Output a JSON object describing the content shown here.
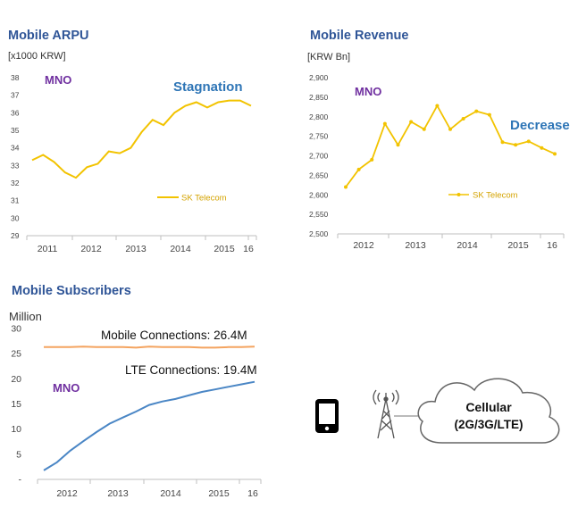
{
  "colors": {
    "title": "#2f5597",
    "sk_line": "#f2c300",
    "sk_legend": "#d4a300",
    "mno": "#7030a0",
    "note": "#2e75b6",
    "mobile_conn": "#f4a460",
    "lte_conn": "#4a86c5"
  },
  "chart_data": [
    {
      "type": "line",
      "title": "Mobile ARPU",
      "ylabel": "[x1000 KRW]",
      "ylim": [
        29,
        38
      ],
      "yticks": [
        29,
        30,
        31,
        32,
        33,
        34,
        35,
        36,
        37,
        38
      ],
      "xlabels": [
        "2011",
        "2012",
        "2013",
        "2014",
        "2015",
        "16"
      ],
      "annotations": {
        "mno": "MNO",
        "note": "Stagnation"
      },
      "series": [
        {
          "name": "SK Telecom",
          "x": [
            "2011 Q1",
            "2011 Q2",
            "2011 Q3",
            "2011 Q4",
            "2012 Q1",
            "2012 Q2",
            "2012 Q3",
            "2012 Q4",
            "2013 Q1",
            "2013 Q2",
            "2013 Q3",
            "2013 Q4",
            "2014 Q1",
            "2014 Q2",
            "2014 Q3",
            "2014 Q4",
            "2015 Q1",
            "2015 Q2",
            "2015 Q3",
            "2015 Q4",
            "2016 Q1"
          ],
          "values": [
            33.3,
            33.6,
            33.2,
            32.6,
            32.3,
            32.9,
            33.1,
            33.8,
            33.7,
            34.0,
            34.9,
            35.6,
            35.3,
            36.0,
            36.4,
            36.6,
            36.3,
            36.6,
            36.7,
            36.7,
            36.4
          ]
        }
      ],
      "legend": "SK Telecom"
    },
    {
      "type": "line",
      "title": "Mobile Revenue",
      "ylabel": "[KRW Bn]",
      "ylim": [
        2500,
        2900
      ],
      "yticks": [
        "2,500",
        "2,550",
        "2,600",
        "2,650",
        "2,700",
        "2,750",
        "2,800",
        "2,850",
        "2,900"
      ],
      "xlabels": [
        "2012",
        "2013",
        "2014",
        "2015",
        "16"
      ],
      "annotations": {
        "mno": "MNO",
        "note": "Decrease"
      },
      "series": [
        {
          "name": "SK Telecom",
          "x": [
            "2012 Q1",
            "2012 Q2",
            "2012 Q3",
            "2012 Q4",
            "2013 Q1",
            "2013 Q2",
            "2013 Q3",
            "2013 Q4",
            "2014 Q1",
            "2014 Q2",
            "2014 Q3",
            "2014 Q4",
            "2015 Q1",
            "2015 Q2",
            "2015 Q3",
            "2015 Q4",
            "2016 Q1"
          ],
          "values": [
            2620,
            2665,
            2690,
            2782,
            2728,
            2787,
            2768,
            2828,
            2768,
            2795,
            2814,
            2805,
            2735,
            2728,
            2737,
            2720,
            2705
          ]
        }
      ],
      "legend": "SK Telecom"
    },
    {
      "type": "line",
      "title": "Mobile Subscribers",
      "ylabel": "Million",
      "ylim": [
        0,
        30
      ],
      "yticks": [
        "-",
        "5",
        "10",
        "15",
        "20",
        "25",
        "30"
      ],
      "xlabels": [
        "2012",
        "2013",
        "2014",
        "2015",
        "16"
      ],
      "annotations": {
        "mno": "MNO"
      },
      "series": [
        {
          "name": "Mobile Connections: 26.4M",
          "x": [
            "2012 Q1",
            "2012 Q2",
            "2012 Q3",
            "2012 Q4",
            "2013 Q1",
            "2013 Q2",
            "2013 Q3",
            "2013 Q4",
            "2014 Q1",
            "2014 Q2",
            "2014 Q3",
            "2014 Q4",
            "2015 Q1",
            "2015 Q2",
            "2015 Q3",
            "2015 Q4",
            "2016 Q1"
          ],
          "values": [
            26.3,
            26.3,
            26.3,
            26.4,
            26.3,
            26.3,
            26.3,
            26.2,
            26.4,
            26.3,
            26.3,
            26.3,
            26.2,
            26.2,
            26.3,
            26.3,
            26.4
          ]
        },
        {
          "name": "LTE Connections: 19.4M",
          "x": [
            "2012 Q1",
            "2012 Q2",
            "2012 Q3",
            "2012 Q4",
            "2013 Q1",
            "2013 Q2",
            "2013 Q3",
            "2013 Q4",
            "2014 Q1",
            "2014 Q2",
            "2014 Q3",
            "2014 Q4",
            "2015 Q1",
            "2015 Q2",
            "2015 Q3",
            "2015 Q4",
            "2016 Q1"
          ],
          "values": [
            1.8,
            3.4,
            5.7,
            7.6,
            9.4,
            11.1,
            12.3,
            13.5,
            14.8,
            15.5,
            16.0,
            16.7,
            17.4,
            17.9,
            18.4,
            18.9,
            19.4
          ]
        }
      ]
    }
  ],
  "diagram": {
    "cloud_label": "Cellular\n(2G/3G/LTE)"
  }
}
